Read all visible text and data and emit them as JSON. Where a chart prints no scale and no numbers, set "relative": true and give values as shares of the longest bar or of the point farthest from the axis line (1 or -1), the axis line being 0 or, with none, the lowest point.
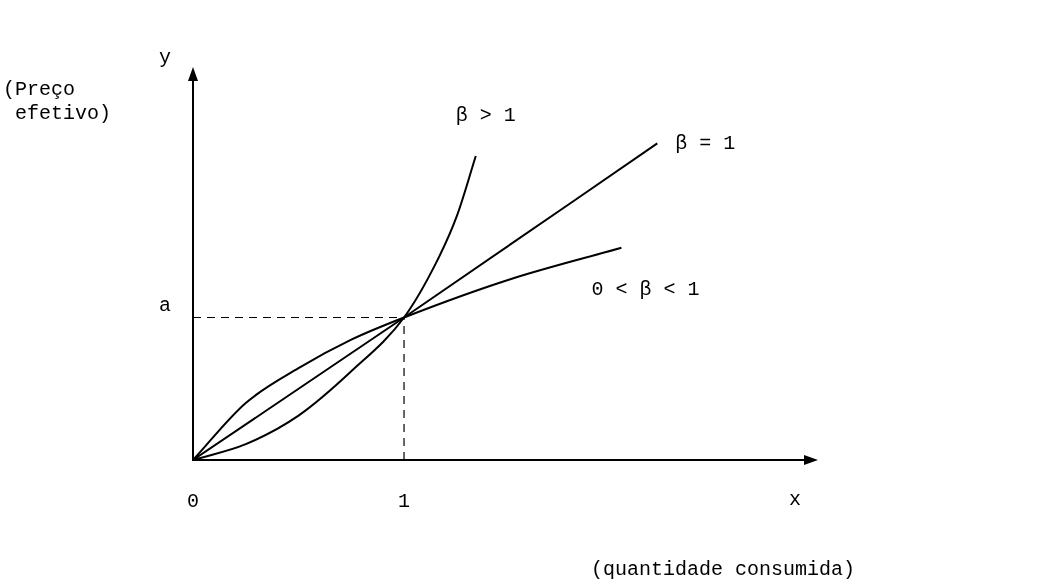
{
  "chart_data": {
    "type": "line",
    "relative": true,
    "xlabel": "x",
    "ylabel": "y",
    "xlim": [
      0,
      2.9
    ],
    "xticks": [
      0,
      1
    ],
    "grid": false,
    "legend": false,
    "marker": "none",
    "line_style": "solid",
    "series": [
      {
        "name": "β > 1",
        "color": "#000000",
        "x": [
          0,
          0.25,
          0.5,
          0.75,
          1,
          1.15,
          1.25,
          1.34
        ],
        "values": [
          0,
          0.05,
          0.14,
          0.28,
          0.45,
          0.62,
          0.77,
          0.96
        ]
      },
      {
        "name": "β = 1",
        "color": "#000000",
        "x": [
          0,
          1,
          2.2
        ],
        "values": [
          0,
          0.45,
          1
        ]
      },
      {
        "name": "0 < β < 1",
        "color": "#000000",
        "x": [
          0,
          0.25,
          0.5,
          0.75,
          1,
          1.5,
          2.03
        ],
        "values": [
          0,
          0.18,
          0.29,
          0.38,
          0.45,
          0.57,
          0.67
        ]
      }
    ],
    "ref_lines": [
      {
        "axis": "y",
        "value": 0.45,
        "label": "a",
        "line_style": "dashed"
      },
      {
        "axis": "x",
        "value": 1,
        "line_style": "dashed"
      }
    ],
    "annotations": [
      "(Preço efetivo)",
      "(quantidade consumida)"
    ]
  }
}
